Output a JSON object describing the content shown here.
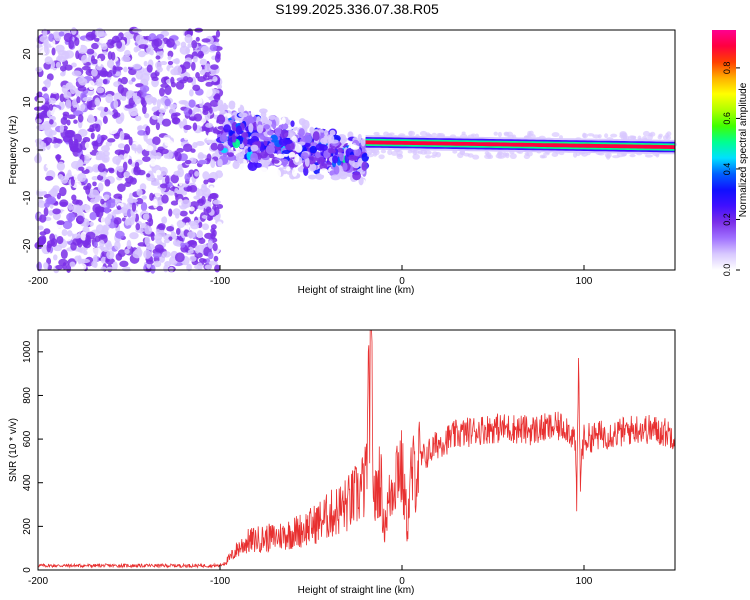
{
  "title": "S199.2025.336.07.38.R05",
  "chart_data": [
    {
      "type": "heatmap",
      "name": "spectrogram",
      "xlabel": "Height of straight line (km)",
      "ylabel": "Frequency (Hz)",
      "xlim": [
        -200,
        150
      ],
      "ylim": [
        -25,
        25
      ],
      "xticks": [
        -200,
        -100,
        0,
        100
      ],
      "yticks": [
        -20,
        -10,
        0,
        10,
        20
      ],
      "colorbar": {
        "label": "Normalized spectral amplitude",
        "range": [
          0,
          0.95
        ],
        "ticks": [
          0.0,
          0.2,
          0.4,
          0.6,
          0.8
        ],
        "colors": [
          "#ffffff",
          "#d8c8ff",
          "#a070ff",
          "#7a2ee8",
          "#4010ff",
          "#1010ff",
          "#0060ff",
          "#00e0ff",
          "#00ff90",
          "#40ff00",
          "#b0ff00",
          "#ffff00",
          "#ffb000",
          "#ff4000",
          "#ff0040",
          "#ff0090"
        ]
      },
      "regions": [
        {
          "desc": "noise",
          "x": [
            -200,
            -100
          ],
          "f": [
            -25,
            25
          ],
          "amp": 0.1
        },
        {
          "desc": "transition",
          "x": [
            -100,
            -20
          ],
          "f_center_start": 3,
          "f_center_end": -2,
          "amp": 0.25
        },
        {
          "desc": "tone",
          "x": [
            -20,
            150
          ],
          "f_center_start": 1.5,
          "f_center_end": 0.5,
          "amp": 0.85
        }
      ]
    },
    {
      "type": "line",
      "name": "snr",
      "xlabel": "Height of straight line (km)",
      "ylabel": "SNR (10 * v/v)",
      "xlim": [
        -200,
        150
      ],
      "ylim": [
        0,
        1100
      ],
      "xticks": [
        -200,
        -100,
        0,
        100
      ],
      "yticks": [
        0,
        200,
        400,
        600,
        800,
        1000
      ],
      "color": "#e83030",
      "series": [
        {
          "name": "SNR",
          "x": [
            -200,
            -150,
            -100,
            -95,
            -90,
            -85,
            -80,
            -70,
            -60,
            -50,
            -40,
            -30,
            -25,
            -20,
            -18,
            -17,
            -16,
            -15,
            -12,
            -10,
            -5,
            -2,
            0,
            3,
            5,
            10,
            20,
            30,
            40,
            50,
            60,
            70,
            80,
            90,
            95,
            96,
            97,
            98,
            99,
            100,
            110,
            120,
            130,
            140,
            150
          ],
          "y": [
            20,
            20,
            20,
            50,
            100,
            130,
            140,
            150,
            170,
            200,
            250,
            300,
            340,
            400,
            800,
            1100,
            500,
            300,
            450,
            200,
            400,
            500,
            450,
            200,
            420,
            500,
            580,
            620,
            640,
            650,
            650,
            640,
            650,
            660,
            600,
            300,
            950,
            400,
            550,
            600,
            620,
            630,
            650,
            640,
            620
          ]
        }
      ]
    }
  ]
}
